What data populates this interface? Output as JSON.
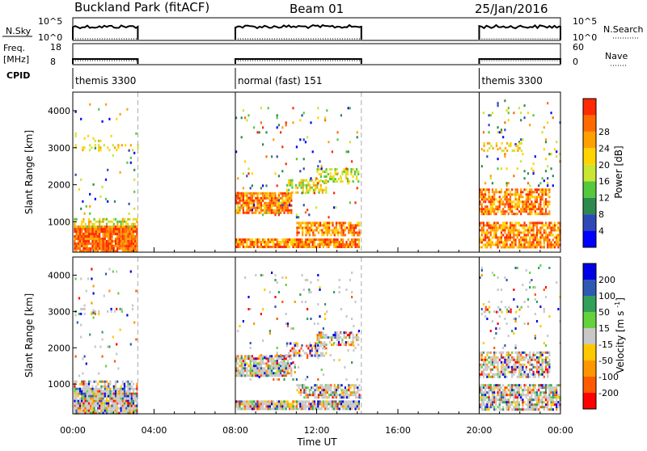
{
  "header": {
    "title": "Buckland Park (fitACF)",
    "beam": "Beam 01",
    "date": "25/Jan/2016"
  },
  "strips": {
    "nsky": {
      "label": "N.Sky",
      "tick_top": "10^5",
      "tick_bottom": "10^0"
    },
    "nsearch": {
      "label": "N.Search",
      "tick_top": "10^5",
      "tick_bottom": "10^0"
    },
    "freq": {
      "label_line1": "Freq.",
      "label_line2": "[MHz]",
      "tick_top": "18",
      "tick_bottom": "8"
    },
    "nave": {
      "label": "Nave",
      "tick_top": "60",
      "tick_bottom": "0"
    },
    "cpid": {
      "label": "CPID"
    }
  },
  "cpid_segments": [
    {
      "label": "themis 3300",
      "start_h": 0,
      "end_h": 3.2
    },
    {
      "label": "normal (fast) 151",
      "start_h": 8.0,
      "end_h": 14.2
    },
    {
      "label": "themis 3300",
      "start_h": 20.0,
      "end_h": 24.0
    }
  ],
  "colors": {
    "power": [
      "#0000ff",
      "#2e48b8",
      "#2e8a4c",
      "#55c83c",
      "#c8e632",
      "#ffd400",
      "#ffa000",
      "#ff6a00",
      "#ff2a00"
    ],
    "velocity": [
      "#ff0000",
      "#ff5a00",
      "#ff9600",
      "#ffc800",
      "#c8c8c8",
      "#64d23c",
      "#32a05a",
      "#2e5ab4",
      "#0000e6"
    ]
  },
  "chart_data": [
    {
      "type": "heatmap",
      "name": "power",
      "xlabel": "Time UT",
      "ylabel": "Slant Range [km]",
      "xlim": [
        0,
        24
      ],
      "ylim": [
        180,
        4500
      ],
      "xticks": [
        "00:00",
        "04:00",
        "08:00",
        "12:00",
        "16:00",
        "20:00",
        "00:00"
      ],
      "yticks": [
        1000,
        2000,
        3000,
        4000
      ],
      "colorbar": {
        "label": "Power [dB]",
        "ticks": [
          4,
          8,
          12,
          16,
          20,
          24,
          28
        ],
        "range": [
          0,
          32
        ]
      }
    },
    {
      "type": "heatmap",
      "name": "velocity",
      "xlabel": "Time UT",
      "ylabel": "Slant Range [km]",
      "xlim": [
        0,
        24
      ],
      "ylim": [
        180,
        4500
      ],
      "xticks": [
        "00:00",
        "04:00",
        "08:00",
        "12:00",
        "16:00",
        "20:00",
        "00:00"
      ],
      "yticks": [
        1000,
        2000,
        3000,
        4000
      ],
      "colorbar": {
        "label": "Velocity [m s^-1]",
        "ticks": [
          -200,
          -100,
          -50,
          -15,
          15,
          50,
          100,
          200
        ]
      }
    }
  ]
}
